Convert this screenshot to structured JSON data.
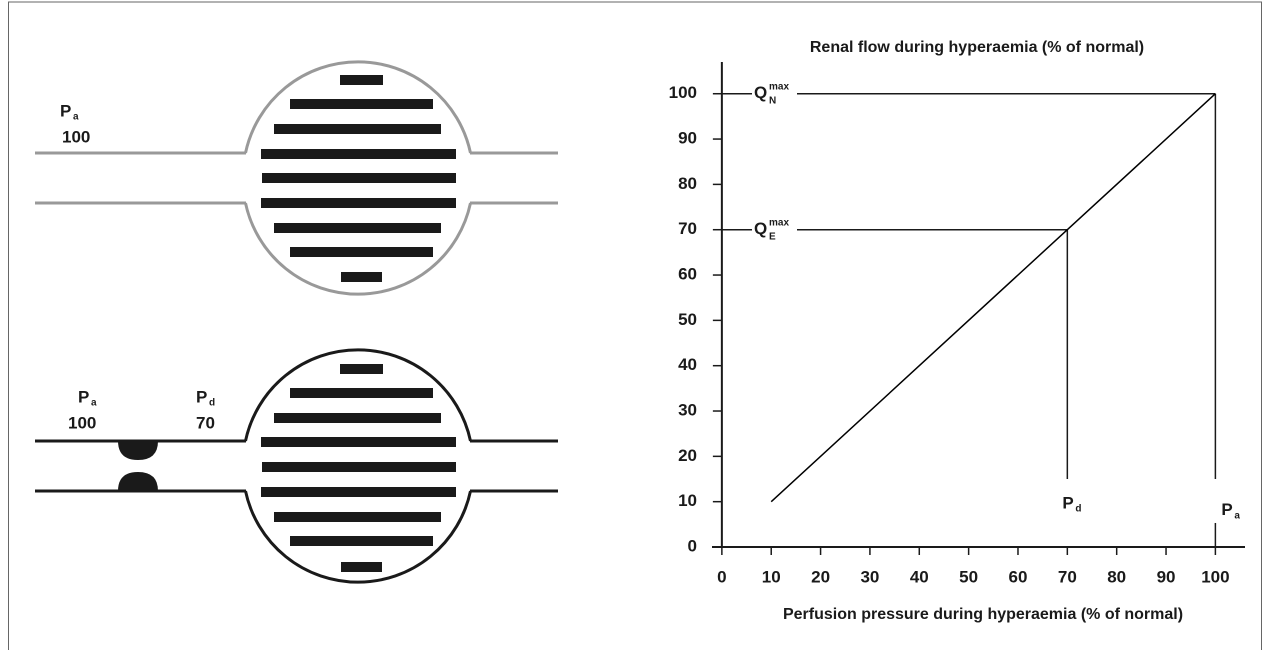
{
  "diagram": {
    "normal": {
      "pa": {
        "symbol": "P",
        "sub": "a",
        "value": "100"
      }
    },
    "stenosis": {
      "pa": {
        "symbol": "P",
        "sub": "a",
        "value": "100"
      },
      "pd": {
        "symbol": "P",
        "sub": "d",
        "value": "70"
      }
    }
  },
  "chart_data": {
    "type": "line",
    "title": "Renal flow during hyperaemia (% of normal)",
    "x_label": "Perfusion pressure during hyperaemia (% of normal)",
    "x": [
      10,
      70,
      100
    ],
    "series": [
      {
        "color": "#000000",
        "values": [
          10,
          70,
          100
        ]
      }
    ],
    "xlim": [
      -2,
      106
    ],
    "ylim": [
      0,
      107
    ],
    "xticks": [
      0,
      10,
      20,
      30,
      40,
      50,
      60,
      70,
      80,
      90,
      100
    ],
    "yticks": [
      0,
      10,
      20,
      30,
      40,
      50,
      60,
      70,
      80,
      90,
      100
    ],
    "reference_points": [
      {
        "x": 100,
        "y": 100,
        "q": {
          "symbol": "Q",
          "sup": "max",
          "sub": "N"
        },
        "p": {
          "symbol": "P",
          "sub": "a"
        }
      },
      {
        "x": 70,
        "y": 70,
        "q": {
          "symbol": "Q",
          "sup": "max",
          "sub": "E"
        },
        "p": {
          "symbol": "P",
          "sub": "d"
        }
      }
    ]
  }
}
